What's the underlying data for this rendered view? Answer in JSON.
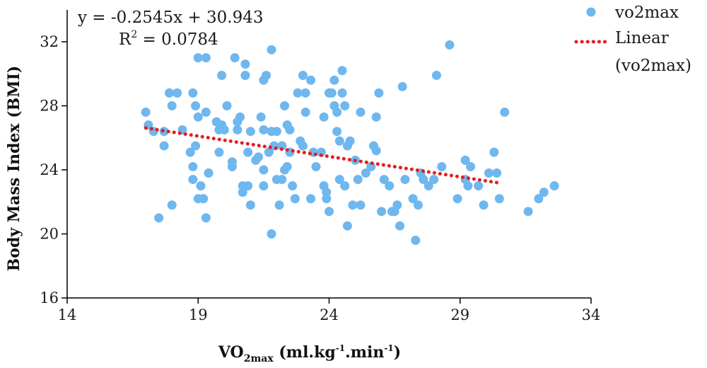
{
  "chart_data": {
    "type": "scatter",
    "ylabel": "Body Mass Index (BMI)",
    "xlabel_main": "VO",
    "xlabel_sub": "2max",
    "xlabel_rest_1": " (ml.kg",
    "xlabel_sup_1": "-1",
    "xlabel_rest_2": ".min",
    "xlabel_sup_2": "-1",
    "xlabel_rest_3": ")",
    "xlim": [
      14,
      34
    ],
    "ylim": [
      16,
      34
    ],
    "x_ticks": [
      14,
      19,
      24,
      29,
      34
    ],
    "y_ticks": [
      16,
      20,
      24,
      28,
      32
    ],
    "equation": "y = -0.2545x + 30.943",
    "r_squared_label": "R",
    "r_squared_sup": "2",
    "r_squared_value": " = 0.0784",
    "trendline": {
      "slope": -0.2545,
      "intercept": 30.943,
      "x_start": 17,
      "x_end": 30.6
    },
    "legend_position": "top-right",
    "series": [
      {
        "name": "vo2max",
        "color": "#6fb7ef",
        "points": [
          [
            17.0,
            27.6
          ],
          [
            17.1,
            26.8
          ],
          [
            17.3,
            26.4
          ],
          [
            17.5,
            21.0
          ],
          [
            17.7,
            26.4
          ],
          [
            17.7,
            25.5
          ],
          [
            17.9,
            28.8
          ],
          [
            18.0,
            28.0
          ],
          [
            18.0,
            21.8
          ],
          [
            18.2,
            28.8
          ],
          [
            18.4,
            26.5
          ],
          [
            18.7,
            25.1
          ],
          [
            18.8,
            28.8
          ],
          [
            18.8,
            24.2
          ],
          [
            18.8,
            23.4
          ],
          [
            18.9,
            25.5
          ],
          [
            18.9,
            28.0
          ],
          [
            19.0,
            27.3
          ],
          [
            19.0,
            31.0
          ],
          [
            19.0,
            22.2
          ],
          [
            19.1,
            23.0
          ],
          [
            19.2,
            22.2
          ],
          [
            19.3,
            31.0
          ],
          [
            19.3,
            27.6
          ],
          [
            19.3,
            21.0
          ],
          [
            19.4,
            23.8
          ],
          [
            19.7,
            27.0
          ],
          [
            19.8,
            26.5
          ],
          [
            19.8,
            25.1
          ],
          [
            19.9,
            29.9
          ],
          [
            19.9,
            26.8
          ],
          [
            20.0,
            26.5
          ],
          [
            20.1,
            28.0
          ],
          [
            20.3,
            24.5
          ],
          [
            20.3,
            24.2
          ],
          [
            20.4,
            31.0
          ],
          [
            20.5,
            27.0
          ],
          [
            20.5,
            26.5
          ],
          [
            20.6,
            27.3
          ],
          [
            20.7,
            23.0
          ],
          [
            20.7,
            22.6
          ],
          [
            20.8,
            30.6
          ],
          [
            20.8,
            29.9
          ],
          [
            20.9,
            25.1
          ],
          [
            20.9,
            23.0
          ],
          [
            21.0,
            26.4
          ],
          [
            21.0,
            21.8
          ],
          [
            21.2,
            24.6
          ],
          [
            21.3,
            24.8
          ],
          [
            21.4,
            27.3
          ],
          [
            21.5,
            29.6
          ],
          [
            21.5,
            26.5
          ],
          [
            21.5,
            23.0
          ],
          [
            21.5,
            24.0
          ],
          [
            21.6,
            29.9
          ],
          [
            21.7,
            25.1
          ],
          [
            21.8,
            31.5
          ],
          [
            21.8,
            26.4
          ],
          [
            21.8,
            20.0
          ],
          [
            21.9,
            25.5
          ],
          [
            22.0,
            26.4
          ],
          [
            22.0,
            23.4
          ],
          [
            22.1,
            21.8
          ],
          [
            22.2,
            25.5
          ],
          [
            22.2,
            23.4
          ],
          [
            22.3,
            28.0
          ],
          [
            22.3,
            24.0
          ],
          [
            22.4,
            24.2
          ],
          [
            22.4,
            26.8
          ],
          [
            22.5,
            25.1
          ],
          [
            22.5,
            26.5
          ],
          [
            22.6,
            23.0
          ],
          [
            22.7,
            22.2
          ],
          [
            22.8,
            28.8
          ],
          [
            22.9,
            25.8
          ],
          [
            23.0,
            25.5
          ],
          [
            23.0,
            29.9
          ],
          [
            23.1,
            27.6
          ],
          [
            23.1,
            28.8
          ],
          [
            23.3,
            29.6
          ],
          [
            23.3,
            22.2
          ],
          [
            23.4,
            25.1
          ],
          [
            23.5,
            24.2
          ],
          [
            23.7,
            25.1
          ],
          [
            23.8,
            27.3
          ],
          [
            23.8,
            23.0
          ],
          [
            23.9,
            22.6
          ],
          [
            23.9,
            22.2
          ],
          [
            24.0,
            28.8
          ],
          [
            24.0,
            21.4
          ],
          [
            24.1,
            28.8
          ],
          [
            24.2,
            29.6
          ],
          [
            24.2,
            28.0
          ],
          [
            24.3,
            27.6
          ],
          [
            24.3,
            26.4
          ],
          [
            24.4,
            25.8
          ],
          [
            24.4,
            23.4
          ],
          [
            24.5,
            28.8
          ],
          [
            24.5,
            30.2
          ],
          [
            24.6,
            23.0
          ],
          [
            24.6,
            28.0
          ],
          [
            24.7,
            25.5
          ],
          [
            24.7,
            20.5
          ],
          [
            24.8,
            25.8
          ],
          [
            24.9,
            21.8
          ],
          [
            25.0,
            24.6
          ],
          [
            25.1,
            23.4
          ],
          [
            25.2,
            21.8
          ],
          [
            25.2,
            27.6
          ],
          [
            25.4,
            23.8
          ],
          [
            25.6,
            24.2
          ],
          [
            25.7,
            25.5
          ],
          [
            25.8,
            27.3
          ],
          [
            25.8,
            25.2
          ],
          [
            25.9,
            28.8
          ],
          [
            26.0,
            21.4
          ],
          [
            26.1,
            23.4
          ],
          [
            26.3,
            23.0
          ],
          [
            26.4,
            21.4
          ],
          [
            26.5,
            21.4
          ],
          [
            26.6,
            21.8
          ],
          [
            26.7,
            20.5
          ],
          [
            26.8,
            29.2
          ],
          [
            26.9,
            23.4
          ],
          [
            27.2,
            22.2
          ],
          [
            27.3,
            19.6
          ],
          [
            27.4,
            21.8
          ],
          [
            27.5,
            23.8
          ],
          [
            27.6,
            23.4
          ],
          [
            27.8,
            23.0
          ],
          [
            28.0,
            23.4
          ],
          [
            28.1,
            29.9
          ],
          [
            28.3,
            24.2
          ],
          [
            28.6,
            31.8
          ],
          [
            28.9,
            22.2
          ],
          [
            29.2,
            23.4
          ],
          [
            29.2,
            24.6
          ],
          [
            29.3,
            23.0
          ],
          [
            29.4,
            24.2
          ],
          [
            29.7,
            23.0
          ],
          [
            29.9,
            21.8
          ],
          [
            30.1,
            23.8
          ],
          [
            30.3,
            25.1
          ],
          [
            30.4,
            23.8
          ],
          [
            30.5,
            22.2
          ],
          [
            30.7,
            27.6
          ],
          [
            31.6,
            21.4
          ],
          [
            32.0,
            22.2
          ],
          [
            32.2,
            22.6
          ],
          [
            32.6,
            23.0
          ]
        ]
      },
      {
        "name": "Linear",
        "name_line2": "(vo2max)",
        "color": "#e02020"
      }
    ]
  }
}
